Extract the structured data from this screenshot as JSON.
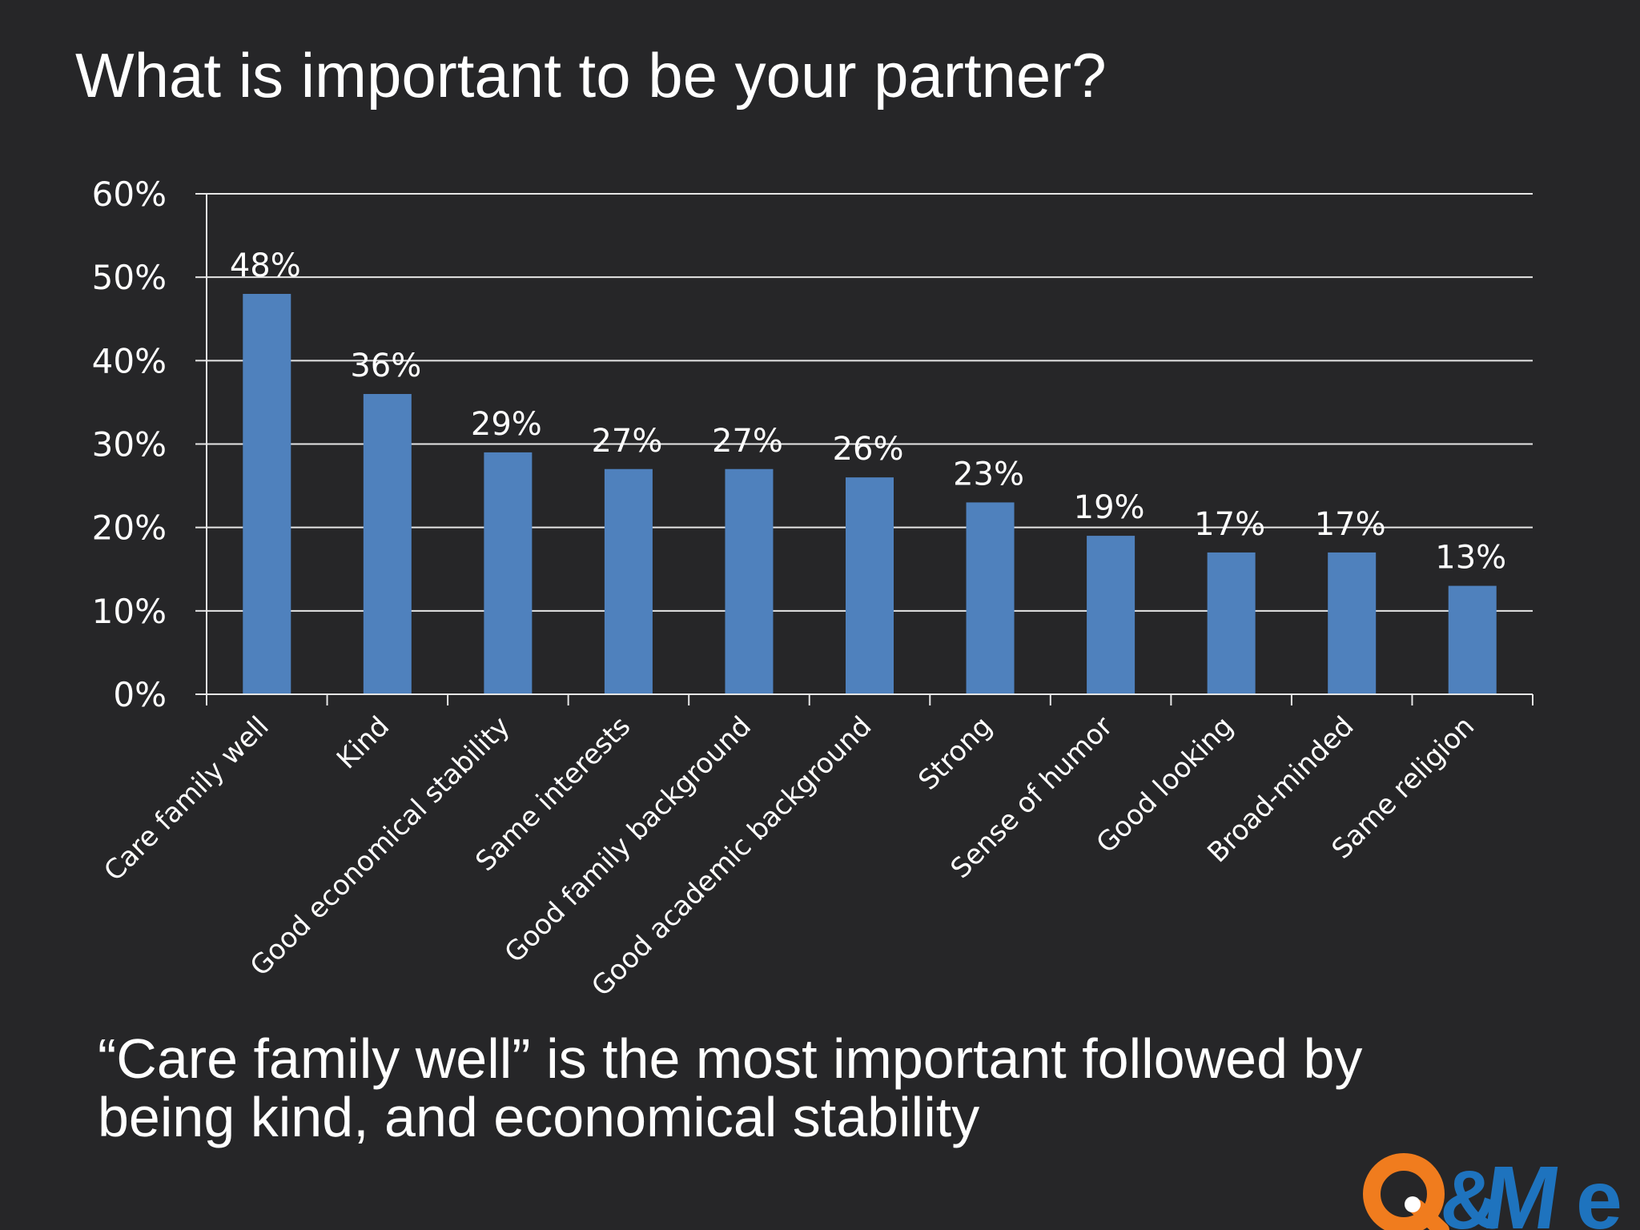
{
  "slide": {
    "title": "What is important to be your partner?",
    "conclusion_line1": "“Care family well” is the most important followed by",
    "conclusion_line2": "being kind, and economical stability",
    "logo_text": "Q&Me"
  },
  "colors": {
    "background": "#262628",
    "bar": "#4f81bd",
    "text": "#ffffff",
    "logo_orange": "#f07c1e",
    "logo_blue": "#1e73be"
  },
  "chart_data": {
    "type": "bar",
    "title": "",
    "xlabel": "",
    "ylabel": "",
    "ylim": [
      0,
      0.6
    ],
    "y_ticks": [
      0,
      0.1,
      0.2,
      0.3,
      0.4,
      0.5,
      0.6
    ],
    "y_tick_labels": [
      "0%",
      "10%",
      "20%",
      "30%",
      "40%",
      "50%",
      "60%"
    ],
    "grid": true,
    "legend": "none",
    "categories": [
      "Care family well",
      "Kind",
      "Good economical stability",
      "Same interests",
      "Good family background",
      "Good academic background",
      "Strong",
      "Sense of humor",
      "Good looking",
      "Broad-minded",
      "Same religion"
    ],
    "values": [
      0.48,
      0.36,
      0.29,
      0.27,
      0.27,
      0.26,
      0.23,
      0.19,
      0.17,
      0.17,
      0.13
    ],
    "data_labels": [
      "48%",
      "36%",
      "29%",
      "27%",
      "27%",
      "26%",
      "23%",
      "19%",
      "17%",
      "17%",
      "13%"
    ]
  }
}
